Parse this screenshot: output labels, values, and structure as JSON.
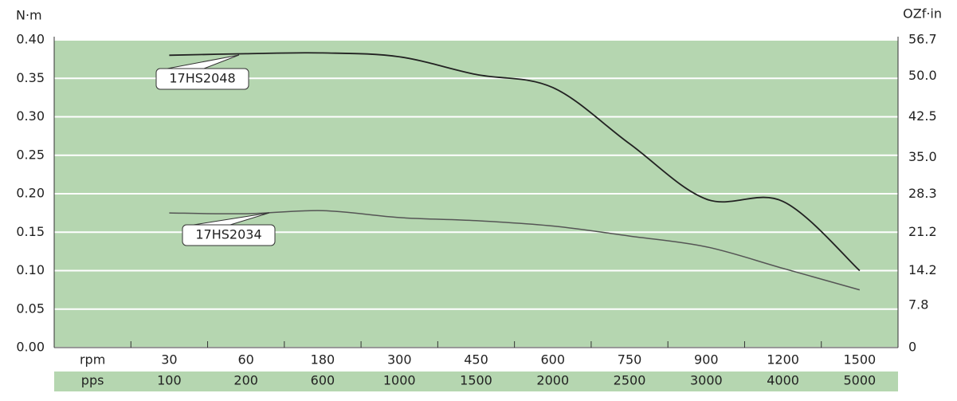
{
  "chart_data": {
    "type": "line",
    "y_axis_label": "N·m",
    "y2_axis_label": "OZf·in",
    "category_label": "rpm",
    "secondary_category_label": "pps",
    "categories": [
      "30",
      "60",
      "180",
      "300",
      "450",
      "600",
      "750",
      "900",
      "1200",
      "1500"
    ],
    "secondary_categories": [
      "100",
      "200",
      "600",
      "1000",
      "1500",
      "2000",
      "2500",
      "3000",
      "4000",
      "5000"
    ],
    "series": [
      {
        "name": "17HS2048",
        "color": "#222222",
        "values": [
          0.38,
          0.382,
          0.383,
          0.378,
          0.355,
          0.338,
          0.265,
          0.193,
          0.19,
          0.1
        ]
      },
      {
        "name": "17HS2034",
        "color": "#555555",
        "values": [
          0.175,
          0.174,
          0.178,
          0.169,
          0.165,
          0.158,
          0.145,
          0.131,
          0.103,
          0.075
        ]
      }
    ],
    "ylim": [
      0,
      0.4
    ],
    "yticks": [
      {
        "value": 0,
        "label": "0.00"
      },
      {
        "value": 0.05,
        "label": "0.05"
      },
      {
        "value": 0.1,
        "label": "0.10"
      },
      {
        "value": 0.15,
        "label": "0.15"
      },
      {
        "value": 0.2,
        "label": "0.20"
      },
      {
        "value": 0.25,
        "label": "0.25"
      },
      {
        "value": 0.3,
        "label": "0.30"
      },
      {
        "value": 0.35,
        "label": "0.35"
      },
      {
        "value": 0.4,
        "label": "0.40"
      }
    ],
    "y2lim": [
      0,
      56.7
    ],
    "y2ticks": [
      0,
      7.8,
      14.2,
      21.2,
      28.3,
      {
        "value": 35,
        "label": "35.0"
      },
      42.5,
      {
        "value": 50,
        "label": "50.0"
      },
      56.7
    ],
    "grid": true,
    "background": "#b5d6b0"
  }
}
